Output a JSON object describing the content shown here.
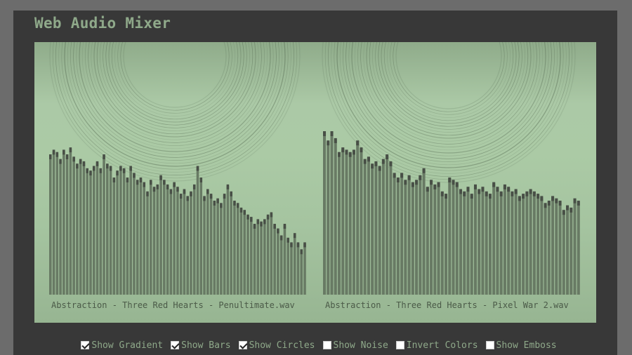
{
  "app": {
    "title": "Web Audio Mixer"
  },
  "tracks": [
    {
      "name": "Abstraction - Three Red Hearts - Penultimate.wav",
      "spectrum": [
        0.6,
        0.62,
        0.61,
        0.58,
        0.62,
        0.6,
        0.63,
        0.59,
        0.56,
        0.58,
        0.57,
        0.54,
        0.53,
        0.55,
        0.57,
        0.54,
        0.6,
        0.56,
        0.55,
        0.5,
        0.53,
        0.55,
        0.54,
        0.5,
        0.55,
        0.52,
        0.49,
        0.5,
        0.48,
        0.44,
        0.49,
        0.46,
        0.47,
        0.51,
        0.49,
        0.47,
        0.45,
        0.48,
        0.46,
        0.43,
        0.45,
        0.42,
        0.44,
        0.47,
        0.55,
        0.5,
        0.42,
        0.45,
        0.43,
        0.4,
        0.41,
        0.39,
        0.43,
        0.47,
        0.44,
        0.4,
        0.39,
        0.37,
        0.36,
        0.34,
        0.33,
        0.3,
        0.32,
        0.31,
        0.32,
        0.34,
        0.35,
        0.3,
        0.28,
        0.25,
        0.3,
        0.24,
        0.22,
        0.26,
        0.22,
        0.19,
        0.22
      ]
    },
    {
      "name": "Abstraction - Three Red Hearts - Pixel War 2.wav",
      "spectrum": [
        0.7,
        0.66,
        0.7,
        0.67,
        0.61,
        0.63,
        0.62,
        0.61,
        0.62,
        0.66,
        0.63,
        0.58,
        0.59,
        0.56,
        0.57,
        0.55,
        0.58,
        0.6,
        0.57,
        0.52,
        0.5,
        0.52,
        0.49,
        0.51,
        0.48,
        0.49,
        0.51,
        0.54,
        0.46,
        0.49,
        0.47,
        0.48,
        0.44,
        0.43,
        0.5,
        0.49,
        0.48,
        0.45,
        0.44,
        0.46,
        0.43,
        0.47,
        0.45,
        0.46,
        0.44,
        0.43,
        0.48,
        0.46,
        0.44,
        0.47,
        0.46,
        0.44,
        0.45,
        0.42,
        0.43,
        0.44,
        0.45,
        0.44,
        0.43,
        0.42,
        0.39,
        0.4,
        0.42,
        0.41,
        0.4,
        0.36,
        0.38,
        0.37,
        0.41,
        0.4
      ]
    }
  ],
  "controls": [
    {
      "label": "Show Gradient",
      "checked": true
    },
    {
      "label": "Show Bars",
      "checked": true
    },
    {
      "label": "Show Circles",
      "checked": true
    },
    {
      "label": "Show Noise",
      "checked": false
    },
    {
      "label": "Invert Colors",
      "checked": false
    },
    {
      "label": "Show Emboss",
      "checked": false
    }
  ],
  "colors": {
    "page_background": "#6c6c6c",
    "panel_background": "#383838",
    "accent_text": "#8fa98a",
    "bar_fill": "#687a64",
    "bar_cap": "#484f46",
    "circle_stroke": "#3c4c38"
  }
}
